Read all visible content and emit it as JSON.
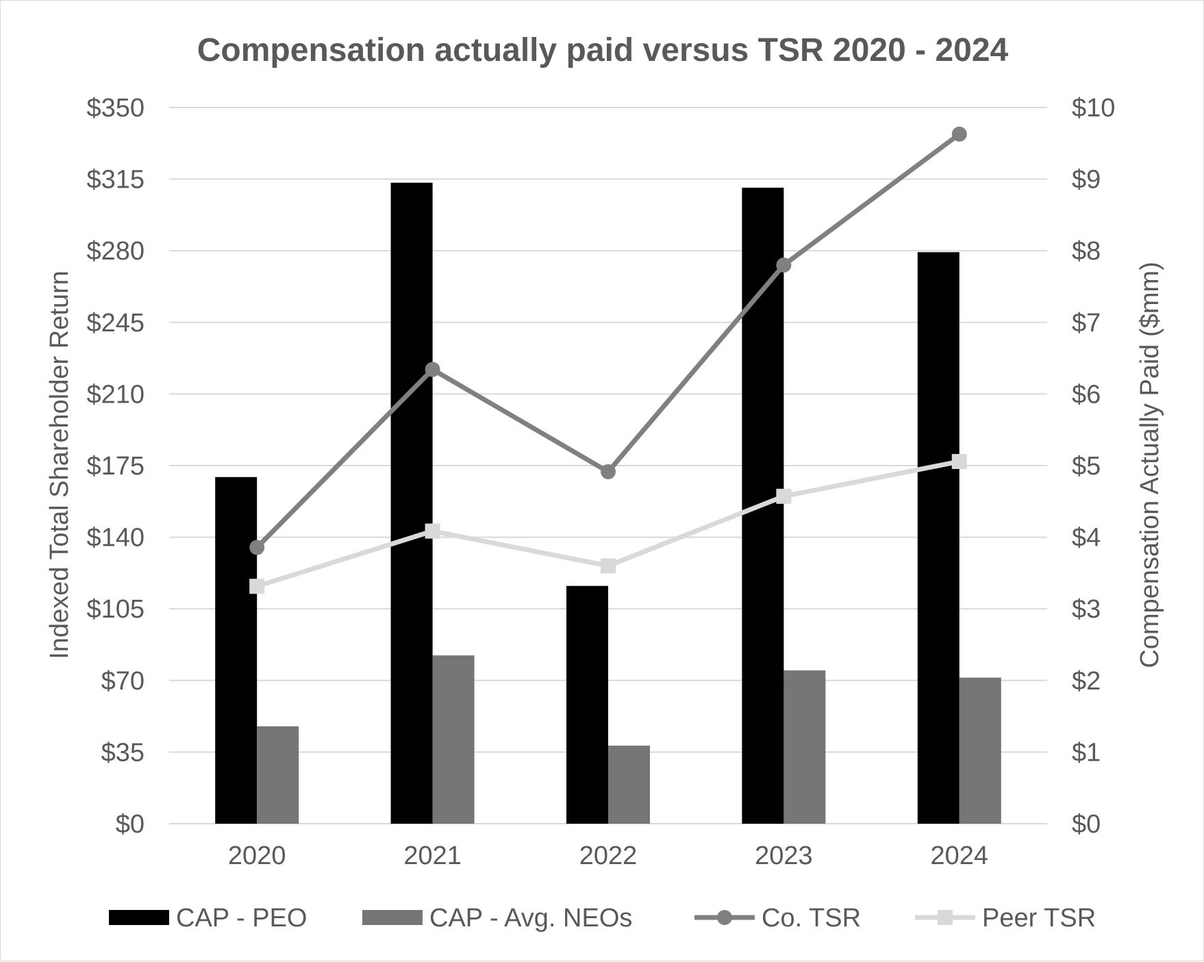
{
  "chart_data": {
    "type": "bar",
    "title": "Compensation actually paid versus TSR 2020 - 2024",
    "xlabel": "",
    "ylabel": "Indexed Total Shareholder Return",
    "y2label": "Compensation Actually Paid ($mm)",
    "categories": [
      "2020",
      "2021",
      "2022",
      "2023",
      "2024"
    ],
    "ylim": [
      0,
      350
    ],
    "y2lim": [
      0,
      10
    ],
    "yticks": [
      "$0",
      "$35",
      "$70",
      "$105",
      "$140",
      "$175",
      "$210",
      "$245",
      "$280",
      "$315",
      "$350"
    ],
    "y2ticks": [
      "$0",
      "$1",
      "$2",
      "$3",
      "$4",
      "$5",
      "$6",
      "$7",
      "$8",
      "$9",
      "$10"
    ],
    "grid": true,
    "legend_position": "bottom",
    "series": [
      {
        "name": "CAP - PEO",
        "type": "bar",
        "axis": "right",
        "color": "#000000",
        "values": [
          4.84,
          8.95,
          3.32,
          8.88,
          7.98
        ]
      },
      {
        "name": "CAP - Avg. NEOs",
        "type": "bar",
        "axis": "right",
        "color": "#767676",
        "values": [
          1.36,
          2.35,
          1.09,
          2.14,
          2.04
        ]
      },
      {
        "name": "Co. TSR",
        "type": "line",
        "marker": "circle",
        "axis": "left",
        "color": "#808080",
        "values": [
          135,
          222,
          172,
          273,
          337
        ]
      },
      {
        "name": "Peer TSR",
        "type": "line",
        "marker": "square",
        "axis": "left",
        "color": "#d9d9d9",
        "values": [
          116,
          143,
          126,
          160,
          177
        ]
      }
    ]
  }
}
